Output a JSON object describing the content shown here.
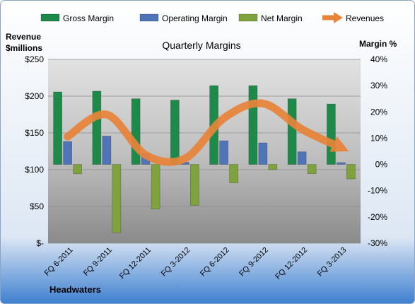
{
  "chart_data": {
    "type": "bar",
    "title": "Quarterly Margins",
    "company": "Headwaters",
    "y_left_label_line1": "Revenue",
    "y_left_label_line2": "$millions",
    "y_right_label": "Margin %",
    "categories": [
      "FQ 6-2011",
      "FQ 9-2011",
      "FQ 12-2011",
      "FQ 3-2012",
      "FQ 6-2012",
      "FQ 9-2012",
      "FQ 12-2012",
      "FQ 3-2013"
    ],
    "y_left_ticks": [
      "$-",
      "$50",
      "$100",
      "$150",
      "$200",
      "$250"
    ],
    "y_left_range": [
      0,
      250
    ],
    "y_right_ticks": [
      "-30%",
      "-20%",
      "-10%",
      "0%",
      "10%",
      "20%",
      "30%",
      "40%"
    ],
    "y_right_range": [
      -30,
      40
    ],
    "grid": true,
    "legend_position": "top",
    "series": [
      {
        "name": "Gross Margin",
        "kind": "bar",
        "axis": "right",
        "unit": "%",
        "color": "#1e8a4a",
        "values": [
          27.6,
          27.9,
          25.0,
          24.5,
          30.0,
          30.0,
          25.0,
          23.0
        ]
      },
      {
        "name": "Operating Margin",
        "kind": "bar",
        "axis": "right",
        "unit": "%",
        "color": "#4f74b8",
        "values": [
          8.7,
          10.8,
          4.2,
          0.8,
          9.0,
          8.2,
          4.8,
          0.7
        ]
      },
      {
        "name": "Net Margin",
        "kind": "bar",
        "axis": "right",
        "unit": "%",
        "color": "#7fa33c",
        "values": [
          -3.6,
          -26.0,
          -17.0,
          -15.6,
          -7.0,
          -2.0,
          -3.5,
          -5.5
        ]
      },
      {
        "name": "Revenues",
        "kind": "line",
        "axis": "left",
        "unit": "$M",
        "color": "#e8843a",
        "values": [
          145,
          175,
          120,
          115,
          170,
          190,
          155,
          130
        ]
      }
    ]
  }
}
